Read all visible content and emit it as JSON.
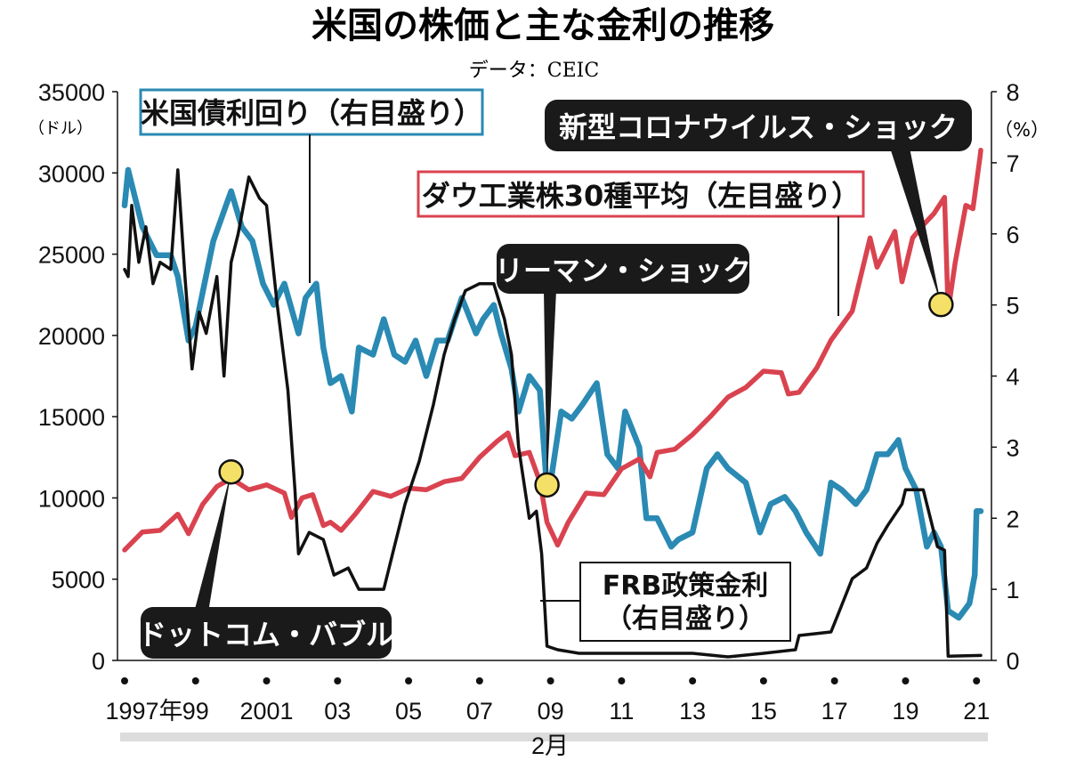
{
  "title": "米国の株価と主な金利の推移",
  "source": "データ：CEIC",
  "chart_data": {
    "type": "line",
    "x_start_year": 1997,
    "x_end_year": 2021.12,
    "left_axis": {
      "unit": "（ドル）",
      "min": 0,
      "max": 35000,
      "ticks": [
        "0",
        "5000",
        "10000",
        "15000",
        "20000",
        "25000",
        "30000",
        "35000"
      ]
    },
    "right_axis": {
      "unit": "（%）",
      "min": 0,
      "max": 8,
      "ticks": [
        "0",
        "1",
        "2",
        "3",
        "4",
        "5",
        "6",
        "7",
        "8"
      ]
    },
    "x_ticks": [
      {
        "year": 1997,
        "label": "1997年"
      },
      {
        "year": 1999,
        "label": "99"
      },
      {
        "year": 2001,
        "label": "2001"
      },
      {
        "year": 2003,
        "label": "03"
      },
      {
        "year": 2005,
        "label": "05"
      },
      {
        "year": 2007,
        "label": "07"
      },
      {
        "year": 2009,
        "label": "09"
      },
      {
        "year": 2011,
        "label": "11"
      },
      {
        "year": 2013,
        "label": "13"
      },
      {
        "year": 2015,
        "label": "15"
      },
      {
        "year": 2017,
        "label": "17"
      },
      {
        "year": 2019,
        "label": "19"
      },
      {
        "year": 2021,
        "label": "21"
      }
    ],
    "x_end_note": "2月",
    "series": [
      {
        "name": "ダウ工業株30種平均（左目盛り）",
        "axis": "left",
        "color": "#d9434f",
        "points": [
          [
            1997.0,
            6800
          ],
          [
            1997.5,
            7900
          ],
          [
            1998.0,
            8000
          ],
          [
            1998.5,
            9000
          ],
          [
            1998.8,
            7800
          ],
          [
            1999.2,
            9600
          ],
          [
            1999.6,
            10700
          ],
          [
            2000.0,
            11200
          ],
          [
            2000.5,
            10500
          ],
          [
            2001.0,
            10800
          ],
          [
            2001.5,
            10300
          ],
          [
            2001.7,
            8800
          ],
          [
            2002.0,
            10000
          ],
          [
            2002.3,
            10200
          ],
          [
            2002.6,
            8300
          ],
          [
            2002.8,
            8500
          ],
          [
            2003.1,
            8000
          ],
          [
            2003.5,
            9000
          ],
          [
            2004.0,
            10400
          ],
          [
            2004.5,
            10100
          ],
          [
            2005.0,
            10600
          ],
          [
            2005.5,
            10500
          ],
          [
            2006.0,
            11000
          ],
          [
            2006.5,
            11200
          ],
          [
            2007.0,
            12500
          ],
          [
            2007.5,
            13500
          ],
          [
            2007.8,
            14000
          ],
          [
            2008.0,
            12600
          ],
          [
            2008.4,
            12800
          ],
          [
            2008.7,
            11000
          ],
          [
            2008.9,
            8500
          ],
          [
            2009.2,
            7100
          ],
          [
            2009.5,
            8500
          ],
          [
            2010.0,
            10300
          ],
          [
            2010.5,
            10200
          ],
          [
            2011.0,
            11800
          ],
          [
            2011.5,
            12400
          ],
          [
            2011.8,
            11300
          ],
          [
            2012.0,
            12800
          ],
          [
            2012.5,
            13000
          ],
          [
            2013.0,
            13900
          ],
          [
            2013.5,
            15000
          ],
          [
            2014.0,
            16200
          ],
          [
            2014.5,
            16800
          ],
          [
            2015.0,
            17800
          ],
          [
            2015.5,
            17700
          ],
          [
            2015.7,
            16400
          ],
          [
            2016.0,
            16500
          ],
          [
            2016.5,
            18000
          ],
          [
            2016.9,
            19700
          ],
          [
            2017.5,
            21500
          ],
          [
            2018.0,
            26000
          ],
          [
            2018.2,
            24200
          ],
          [
            2018.7,
            26400
          ],
          [
            2018.9,
            23300
          ],
          [
            2019.2,
            26000
          ],
          [
            2019.5,
            26800
          ],
          [
            2019.8,
            27500
          ],
          [
            2020.1,
            28500
          ],
          [
            2020.2,
            21500
          ],
          [
            2020.4,
            24500
          ],
          [
            2020.7,
            28000
          ],
          [
            2020.9,
            27800
          ],
          [
            2021.1,
            31000
          ],
          [
            2021.12,
            31400
          ]
        ]
      },
      {
        "name": "米国債利回り（右目盛り）",
        "axis": "right",
        "color": "#2a8ab3",
        "points": [
          [
            1997.0,
            6.4
          ],
          [
            1997.1,
            6.9
          ],
          [
            1997.5,
            6.1
          ],
          [
            1997.9,
            5.7
          ],
          [
            1998.3,
            5.7
          ],
          [
            1998.5,
            5.4
          ],
          [
            1998.8,
            4.5
          ],
          [
            1999.0,
            4.7
          ],
          [
            1999.5,
            5.9
          ],
          [
            2000.0,
            6.6
          ],
          [
            2000.3,
            6.1
          ],
          [
            2000.6,
            5.9
          ],
          [
            2000.9,
            5.3
          ],
          [
            2001.2,
            5.0
          ],
          [
            2001.5,
            5.3
          ],
          [
            2001.9,
            4.6
          ],
          [
            2002.1,
            5.1
          ],
          [
            2002.4,
            5.3
          ],
          [
            2002.6,
            4.4
          ],
          [
            2002.8,
            3.9
          ],
          [
            2003.1,
            4.0
          ],
          [
            2003.4,
            3.5
          ],
          [
            2003.6,
            4.4
          ],
          [
            2004.0,
            4.3
          ],
          [
            2004.3,
            4.8
          ],
          [
            2004.6,
            4.3
          ],
          [
            2004.9,
            4.2
          ],
          [
            2005.2,
            4.5
          ],
          [
            2005.5,
            4.0
          ],
          [
            2005.8,
            4.5
          ],
          [
            2006.1,
            4.5
          ],
          [
            2006.5,
            5.1
          ],
          [
            2006.9,
            4.6
          ],
          [
            2007.1,
            4.8
          ],
          [
            2007.4,
            5.0
          ],
          [
            2007.6,
            4.6
          ],
          [
            2007.9,
            4.1
          ],
          [
            2008.1,
            3.5
          ],
          [
            2008.4,
            4.0
          ],
          [
            2008.7,
            3.8
          ],
          [
            2008.9,
            2.4
          ],
          [
            2009.0,
            2.5
          ],
          [
            2009.3,
            3.5
          ],
          [
            2009.6,
            3.4
          ],
          [
            2009.9,
            3.6
          ],
          [
            2010.3,
            3.9
          ],
          [
            2010.6,
            2.9
          ],
          [
            2010.9,
            2.7
          ],
          [
            2011.1,
            3.5
          ],
          [
            2011.5,
            3.0
          ],
          [
            2011.7,
            2.0
          ],
          [
            2012.0,
            2.0
          ],
          [
            2012.4,
            1.6
          ],
          [
            2012.6,
            1.7
          ],
          [
            2013.0,
            1.8
          ],
          [
            2013.4,
            2.7
          ],
          [
            2013.7,
            2.9
          ],
          [
            2014.0,
            2.7
          ],
          [
            2014.5,
            2.5
          ],
          [
            2014.9,
            1.8
          ],
          [
            2015.2,
            2.2
          ],
          [
            2015.6,
            2.3
          ],
          [
            2015.9,
            2.1
          ],
          [
            2016.2,
            1.8
          ],
          [
            2016.6,
            1.5
          ],
          [
            2016.9,
            2.5
          ],
          [
            2017.2,
            2.4
          ],
          [
            2017.6,
            2.2
          ],
          [
            2017.9,
            2.4
          ],
          [
            2018.2,
            2.9
          ],
          [
            2018.5,
            2.9
          ],
          [
            2018.8,
            3.1
          ],
          [
            2019.0,
            2.7
          ],
          [
            2019.3,
            2.4
          ],
          [
            2019.6,
            1.6
          ],
          [
            2019.8,
            1.8
          ],
          [
            2020.0,
            1.6
          ],
          [
            2020.2,
            0.7
          ],
          [
            2020.5,
            0.6
          ],
          [
            2020.8,
            0.8
          ],
          [
            2020.95,
            1.2
          ],
          [
            2021.0,
            2.1
          ],
          [
            2021.12,
            2.1
          ]
        ]
      },
      {
        "name": "FRB政策金利（右目盛り）",
        "axis": "right",
        "color": "#111111",
        "points": [
          [
            1997.0,
            5.5
          ],
          [
            1997.1,
            5.4
          ],
          [
            1997.2,
            6.4
          ],
          [
            1997.4,
            5.6
          ],
          [
            1997.6,
            6.1
          ],
          [
            1997.8,
            5.3
          ],
          [
            1998.0,
            5.6
          ],
          [
            1998.3,
            5.5
          ],
          [
            1998.5,
            6.9
          ],
          [
            1998.7,
            5.4
          ],
          [
            1998.9,
            4.1
          ],
          [
            1999.1,
            4.9
          ],
          [
            1999.3,
            4.6
          ],
          [
            1999.6,
            5.4
          ],
          [
            1999.8,
            4.0
          ],
          [
            2000.0,
            5.6
          ],
          [
            2000.2,
            6.0
          ],
          [
            2000.5,
            6.8
          ],
          [
            2000.8,
            6.5
          ],
          [
            2001.0,
            6.4
          ],
          [
            2001.3,
            5.0
          ],
          [
            2001.6,
            3.8
          ],
          [
            2001.8,
            2.4
          ],
          [
            2001.9,
            1.5
          ],
          [
            2002.2,
            1.8
          ],
          [
            2002.6,
            1.7
          ],
          [
            2002.9,
            1.2
          ],
          [
            2003.3,
            1.3
          ],
          [
            2003.6,
            1.0
          ],
          [
            2004.0,
            1.0
          ],
          [
            2004.3,
            1.0
          ],
          [
            2004.6,
            1.6
          ],
          [
            2004.9,
            2.2
          ],
          [
            2005.3,
            2.8
          ],
          [
            2005.7,
            3.6
          ],
          [
            2006.0,
            4.3
          ],
          [
            2006.3,
            4.8
          ],
          [
            2006.6,
            5.2
          ],
          [
            2007.0,
            5.3
          ],
          [
            2007.4,
            5.3
          ],
          [
            2007.7,
            4.8
          ],
          [
            2007.9,
            4.3
          ],
          [
            2008.1,
            3.0
          ],
          [
            2008.4,
            2.0
          ],
          [
            2008.6,
            2.1
          ],
          [
            2008.75,
            1.5
          ],
          [
            2008.9,
            0.2
          ],
          [
            2009.2,
            0.15
          ],
          [
            2009.8,
            0.1
          ],
          [
            2011.0,
            0.1
          ],
          [
            2012.0,
            0.1
          ],
          [
            2013.0,
            0.1
          ],
          [
            2014.0,
            0.05
          ],
          [
            2015.0,
            0.1
          ],
          [
            2015.9,
            0.15
          ],
          [
            2016.0,
            0.35
          ],
          [
            2016.9,
            0.4
          ],
          [
            2017.1,
            0.65
          ],
          [
            2017.5,
            1.15
          ],
          [
            2017.9,
            1.3
          ],
          [
            2018.2,
            1.65
          ],
          [
            2018.5,
            1.9
          ],
          [
            2018.9,
            2.2
          ],
          [
            2019.0,
            2.4
          ],
          [
            2019.5,
            2.4
          ],
          [
            2019.7,
            2.0
          ],
          [
            2019.9,
            1.6
          ],
          [
            2020.1,
            1.55
          ],
          [
            2020.2,
            0.06
          ],
          [
            2021.12,
            0.07
          ]
        ]
      }
    ],
    "annotations": [
      {
        "label": "米国債利回り（右目盛り）",
        "border": "#2a8ab3"
      },
      {
        "label": "ダウ工業株30種平均（左目盛り）",
        "border": "#d9434f"
      },
      {
        "label": "FRB政策金利",
        "label2": "（右目盛り）"
      },
      {
        "label": "ドットコム・バブル",
        "marker_year": 2000.0,
        "marker_value": 11600
      },
      {
        "label": "リーマン・ショック",
        "marker_year": 2008.9,
        "marker_value": 10800
      },
      {
        "label": "新型コロナウイルス・ショック",
        "marker_year": 2020.0,
        "marker_value": 21900
      }
    ],
    "colors": {
      "dow": "#d9434f",
      "bond": "#2a8ab3",
      "frb": "#111111",
      "marker": "#f5e067",
      "callout_bg": "#1a1a1a"
    }
  }
}
